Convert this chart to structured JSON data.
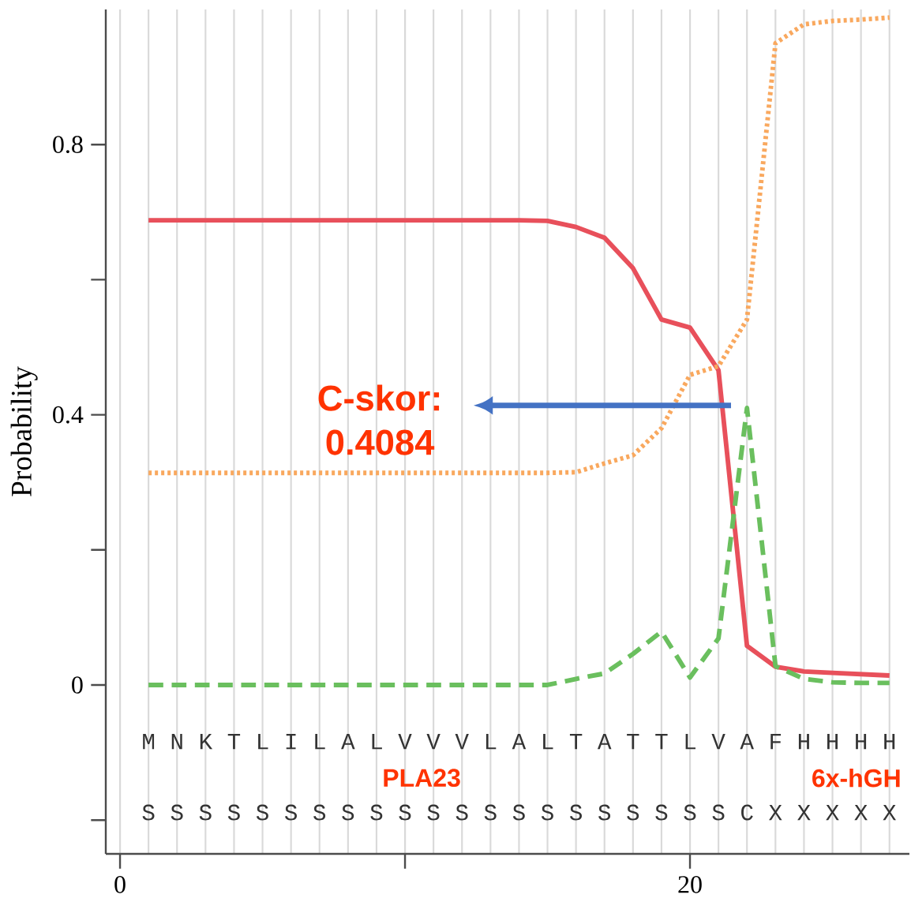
{
  "chart_data": {
    "type": "line",
    "ylabel": "Probability",
    "xlim": [
      -0.5,
      27.7
    ],
    "ylim": [
      -0.25,
      1.0
    ],
    "xticks": [
      0,
      {
        "value": 10,
        "label": null
      },
      20
    ],
    "yticks": [
      {
        "value": -0.2,
        "label": null
      },
      0,
      {
        "value": 0.2,
        "label": null
      },
      0.4,
      {
        "value": 0.6,
        "label": null
      },
      0.8
    ],
    "grid": "x",
    "marker": "none",
    "x": [
      1,
      2,
      3,
      4,
      5,
      6,
      7,
      8,
      9,
      10,
      11,
      12,
      13,
      14,
      15,
      16,
      17,
      18,
      19,
      20,
      21,
      22,
      23,
      24,
      25,
      26,
      27
    ],
    "series": [
      {
        "color": "#e8505b",
        "line_style": "solid",
        "values": [
          0.688,
          0.688,
          0.688,
          0.688,
          0.688,
          0.688,
          0.688,
          0.688,
          0.688,
          0.688,
          0.688,
          0.688,
          0.688,
          0.688,
          0.687,
          0.678,
          0.662,
          0.617,
          0.541,
          0.529,
          0.466,
          0.058,
          0.027,
          0.02,
          0.018,
          0.016,
          0.014
        ]
      },
      {
        "color": "#f9a85e",
        "line_style": "dotted",
        "values": [
          0.314,
          0.314,
          0.314,
          0.314,
          0.314,
          0.314,
          0.314,
          0.314,
          0.314,
          0.314,
          0.314,
          0.314,
          0.314,
          0.314,
          0.314,
          0.315,
          0.328,
          0.34,
          0.38,
          0.459,
          0.472,
          0.541,
          0.95,
          0.978,
          0.983,
          0.985,
          0.988
        ]
      },
      {
        "color": "#6abf5e",
        "line_style": "dashed",
        "values": [
          0,
          0,
          0,
          0,
          0,
          0,
          0,
          0,
          0,
          0,
          0,
          0,
          0,
          0,
          0,
          0.009,
          0.017,
          0.046,
          0.079,
          0.011,
          0.069,
          0.41,
          0.028,
          0.009,
          0.004,
          0.003,
          0.003
        ]
      }
    ],
    "annotations": [
      "C-skor: 0.4084",
      "PLA23",
      "6x-hGH",
      "M",
      "N",
      "K",
      "T",
      "L",
      "I",
      "L",
      "A",
      "L",
      "V",
      "V",
      "V",
      "L",
      "A",
      "L",
      "T",
      "A",
      "T",
      "T",
      "L",
      "V",
      "A",
      "F",
      "H",
      "H",
      "H",
      "H",
      "S",
      "S",
      "S",
      "S",
      "S",
      "S",
      "S",
      "S",
      "S",
      "S",
      "S",
      "S",
      "S",
      "S",
      "S",
      "S",
      "S",
      "S",
      "S",
      "S",
      "S",
      "C",
      "X",
      "X",
      "X",
      "X",
      "X"
    ]
  }
}
